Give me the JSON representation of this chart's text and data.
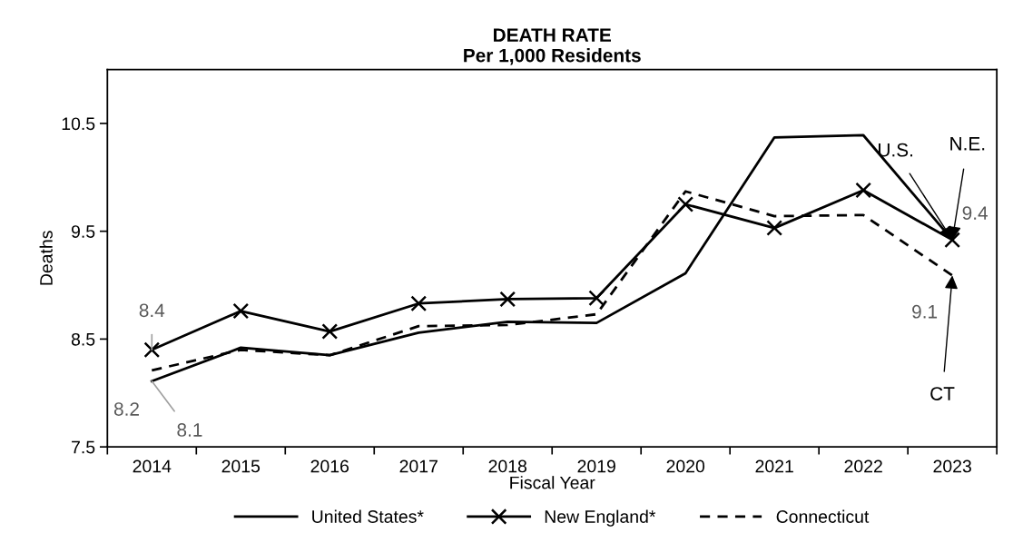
{
  "chart_data": {
    "type": "line",
    "title": "DEATH RATE\nPer 1,000 Residents",
    "xlabel": "Fiscal Year",
    "ylabel": "Deaths",
    "categories": [
      "2014",
      "2015",
      "2016",
      "2017",
      "2018",
      "2019",
      "2020",
      "2021",
      "2022",
      "2023"
    ],
    "series": [
      {
        "name": "United States*",
        "color": "#000000",
        "marker": "none",
        "line_style": "solid",
        "values": [
          8.11,
          8.42,
          8.35,
          8.56,
          8.66,
          8.65,
          9.11,
          10.37,
          10.39,
          9.42
        ],
        "value_labels": [
          "8.1",
          null,
          null,
          null,
          null,
          null,
          null,
          null,
          null,
          null
        ]
      },
      {
        "name": "New England*",
        "color": "#000000",
        "marker": "cross",
        "line_style": "solid",
        "values": [
          8.4,
          8.76,
          8.57,
          8.83,
          8.87,
          8.88,
          9.75,
          9.53,
          9.88,
          9.42
        ],
        "value_labels": [
          "8.4",
          null,
          null,
          null,
          null,
          null,
          null,
          null,
          null,
          "9.4"
        ]
      },
      {
        "name": "Connecticut",
        "color": "#000000",
        "marker": "none",
        "line_style": "dashed",
        "values": [
          8.21,
          8.4,
          8.35,
          8.62,
          8.63,
          8.73,
          9.87,
          9.64,
          9.65,
          9.09
        ],
        "value_labels": [
          "8.2",
          null,
          null,
          null,
          null,
          null,
          null,
          null,
          null,
          "9.1"
        ]
      }
    ],
    "annotations": [
      {
        "text": "U.S.",
        "x": "2023",
        "y": 9.42
      },
      {
        "text": "N.E.",
        "x": "2023",
        "y": 9.42
      },
      {
        "text": "CT",
        "x": "2023",
        "y": 9.09
      }
    ],
    "ylim": [
      7.5,
      11
    ],
    "yticks": [
      7.5,
      8.5,
      9.5,
      10.5
    ],
    "grid": false,
    "legend": "bottom"
  }
}
